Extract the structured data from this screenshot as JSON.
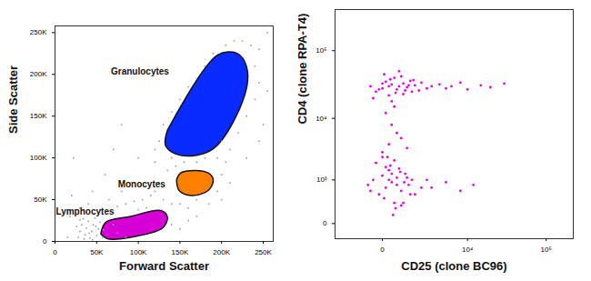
{
  "chart_data": [
    {
      "type": "scatter",
      "x_label": "Forward Scatter",
      "y_label": "Side Scatter",
      "xlim": [
        0,
        262000
      ],
      "ylim": [
        0,
        258000
      ],
      "xticks": [
        0,
        {
          "value": 50000,
          "label": "50K"
        },
        {
          "value": 100000,
          "label": "100K"
        },
        {
          "value": 150000,
          "label": "150K"
        },
        {
          "value": 200000,
          "label": "200K"
        },
        {
          "value": 250000,
          "label": "250K"
        }
      ],
      "yticks": [
        0,
        {
          "value": 50000,
          "label": "50K"
        },
        {
          "value": 100000,
          "label": "100K"
        },
        {
          "value": 150000,
          "label": "150K"
        },
        {
          "value": 200000,
          "label": "200K"
        },
        {
          "value": 250000,
          "label": "250K"
        }
      ],
      "series": [
        {
          "color": "#9a9a9a",
          "x": [
            28000,
            30000,
            32000,
            34000,
            36000,
            38000,
            40000,
            42000,
            44000,
            46000,
            48000,
            50000,
            52000,
            54000,
            30000,
            35000,
            45000,
            26000,
            41000,
            49000,
            57000,
            58000,
            40000,
            45000,
            55000,
            65000,
            30000,
            48000,
            75000,
            85000,
            95000,
            105000,
            115000,
            120000,
            110000,
            100000,
            130000,
            140000,
            125000,
            135000,
            140000,
            120000,
            150000,
            160000,
            170000,
            195000,
            200000,
            205000,
            195000,
            180000,
            170000,
            155000,
            145000,
            210000,
            220000,
            230000,
            240000,
            245000,
            240000,
            235000,
            225000,
            205000,
            190000,
            180000,
            170000,
            160000,
            150000,
            140000,
            130000,
            125000,
            120000,
            250000,
            255000,
            200000,
            215000,
            245000,
            160000,
            175000,
            185000,
            200000,
            210000,
            230000,
            245000,
            255000,
            100000,
            90000,
            80000,
            70000,
            75000,
            85000,
            140000,
            150000,
            160000,
            170000,
            15000,
            18000,
            20000,
            22000,
            60000,
            70000,
            80000
          ],
          "y": [
            5000,
            12000,
            20000,
            27000,
            8000,
            16000,
            24000,
            4000,
            12000,
            20000,
            28000,
            7000,
            15000,
            23000,
            26000,
            3000,
            2000,
            18000,
            10000,
            18000,
            5000,
            14000,
            45000,
            60000,
            38000,
            50000,
            40000,
            33000,
            42000,
            45000,
            48000,
            50000,
            55000,
            60000,
            40000,
            38000,
            50000,
            45000,
            70000,
            85000,
            100000,
            95000,
            45000,
            40000,
            50000,
            60000,
            80000,
            95000,
            100000,
            100000,
            95000,
            95000,
            90000,
            110000,
            130000,
            150000,
            170000,
            190000,
            210000,
            235000,
            240000,
            235000,
            225000,
            210000,
            195000,
            185000,
            170000,
            155000,
            140000,
            120000,
            110000,
            140000,
            180000,
            120000,
            240000,
            230000,
            60000,
            65000,
            45000,
            50000,
            70000,
            100000,
            120000,
            250000,
            100000,
            70000,
            60000,
            20000,
            10000,
            5000,
            20000,
            15000,
            25000,
            30000,
            5000,
            30000,
            55000,
            100000,
            80000,
            110000,
            140000
          ]
        },
        {
          "color": "#0a2bff",
          "gate": {
            "x": [
              135000,
              195000,
              219000,
              230000,
              228000,
              190000,
              151000,
              133000
            ],
            "y": [
              133000,
              223000,
              225000,
              209000,
              176000,
              111000,
              103000,
              114000
            ]
          },
          "x": [
            150000,
            160000,
            175000,
            190000,
            200000,
            210000,
            220000,
            205000,
            180000,
            165000,
            145000,
            195000,
            215000,
            185000,
            170000
          ],
          "y": [
            120000,
            140000,
            160000,
            180000,
            200000,
            215000,
            200000,
            170000,
            130000,
            115000,
            125000,
            150000,
            185000,
            190000,
            175000
          ]
        },
        {
          "color": "#ff7f00",
          "gate": {
            "x": [
              146000,
              151000,
              168000,
              184000,
              190000,
              184000,
              164000,
              149000
            ],
            "y": [
              74000,
              82000,
              85000,
              82000,
              74000,
              61000,
              55000,
              61000
            ]
          },
          "x": [
            155000,
            165000,
            175000,
            185000,
            160000,
            170000,
            180000
          ],
          "y": [
            70000,
            78000,
            72000,
            70000,
            64000,
            60000,
            80000
          ]
        },
        {
          "color": "#d600d6",
          "gate": {
            "x": [
              55000,
              61000,
              91000,
              127000,
              135000,
              129000,
              96000,
              64000
            ],
            "y": [
              9000,
              23000,
              30000,
              37000,
              29000,
              16000,
              6000,
              3000
            ]
          },
          "x": [
            65000,
            80000,
            95000,
            110000,
            125000,
            75000,
            100000,
            115000,
            90000,
            120000
          ],
          "y": [
            12000,
            20000,
            25000,
            30000,
            30000,
            8000,
            15000,
            22000,
            10000,
            20000
          ]
        }
      ],
      "annotations": [
        {
          "text": "Granulocytes",
          "x": 102000,
          "y": 203000
        },
        {
          "text": "Monocytes",
          "x": 104000,
          "y": 68000
        },
        {
          "text": "Lymphocytes",
          "x": 36000,
          "y": 36000
        }
      ]
    },
    {
      "type": "scatter",
      "log": true,
      "x_label": "CD25 (clone BC96)",
      "y_label": "CD4 (clone RPA-T4)",
      "xlim": [
        -2800,
        216000
      ],
      "ylim": [
        -200,
        400000
      ],
      "xticks": [
        0,
        {
          "value": 10000,
          "label": "10⁴"
        },
        {
          "value": 100000,
          "label": "10⁵"
        }
      ],
      "yticks": [
        0,
        {
          "value": 1000,
          "label": "10³"
        },
        {
          "value": 10000,
          "label": "10⁴"
        },
        {
          "value": 100000,
          "label": "10⁵"
        }
      ],
      "series": [
        {
          "color": "#e600e6",
          "x": [
            -400,
            -200,
            0,
            100,
            200,
            300,
            400,
            500,
            600,
            800,
            1000,
            1200,
            1500,
            1800,
            2000,
            2500,
            3000,
            -300,
            50,
            250,
            450,
            700,
            900,
            1100,
            1400,
            300,
            600,
            0,
            -100,
            800,
            4000,
            5000,
            6000,
            8000,
            10000,
            15000,
            20000,
            30000,
            1300,
            200
          ],
          "y": [
            30000,
            25000,
            28000,
            35000,
            22000,
            32000,
            40000,
            27000,
            30000,
            33000,
            29000,
            36000,
            31000,
            26000,
            34000,
            28000,
            30000,
            20000,
            45000,
            38000,
            24000,
            42000,
            26000,
            31000,
            37000,
            18000,
            50000,
            33000,
            27000,
            23000,
            32000,
            28000,
            30000,
            34000,
            27000,
            31000,
            29000,
            33000,
            25000,
            30000
          ]
        },
        {
          "color": "#e600e6",
          "x": [
            -500,
            -300,
            -100,
            0,
            100,
            200,
            300,
            400,
            500,
            700,
            900,
            1100,
            1300,
            1500,
            2000,
            -200,
            50,
            250,
            450,
            650,
            850,
            150,
            350,
            600,
            800,
            1000,
            -400,
            0,
            300,
            500,
            1200,
            2500,
            3000,
            5000,
            8000,
            12000,
            400,
            100,
            700,
            200
          ],
          "y": [
            800,
            1000,
            500,
            1200,
            700,
            1500,
            900,
            300,
            1100,
            600,
            1300,
            800,
            1000,
            500,
            700,
            2000,
            400,
            1800,
            200,
            1400,
            900,
            2500,
            100,
            1600,
            300,
            1100,
            600,
            3000,
            1300,
            800,
            500,
            1000,
            700,
            900,
            600,
            800,
            2200,
            1700,
            250,
            1000
          ]
        },
        {
          "color": "#e600e6",
          "x": [
            0,
            200,
            500,
            300,
            100,
            700,
            400,
            1000
          ],
          "y": [
            2500,
            4000,
            6000,
            8000,
            12000,
            5000,
            15000,
            3500
          ]
        }
      ]
    }
  ]
}
